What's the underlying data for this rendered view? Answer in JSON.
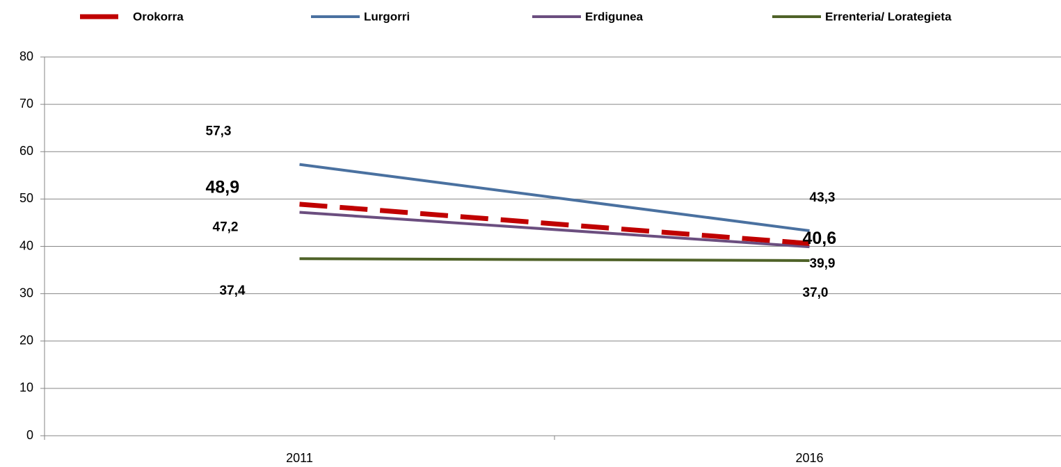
{
  "chart_data": {
    "type": "line",
    "categories": [
      "2011",
      "2016"
    ],
    "series": [
      {
        "name": "Orokorra",
        "color": "#c00000",
        "label_color": "#984806",
        "dashed": true,
        "values": [
          48.9,
          40.6
        ],
        "value_labels": [
          "48,9",
          "40,6"
        ]
      },
      {
        "name": "Lurgorri",
        "color": "#4a71a0",
        "label_color": "#3f6593",
        "dashed": false,
        "values": [
          57.3,
          43.3
        ],
        "value_labels": [
          "57,3",
          "43,3"
        ]
      },
      {
        "name": "Erdigunea",
        "color": "#6b4e7f",
        "label_color": "#7030a0",
        "dashed": false,
        "values": [
          47.2,
          39.9
        ],
        "value_labels": [
          "47,2",
          "39,9"
        ]
      },
      {
        "name": "Errenteria/ Lorategieta",
        "color": "#4f6228",
        "label_color": "#4f6228",
        "dashed": false,
        "values": [
          37.4,
          37.0
        ],
        "value_labels": [
          "37,4",
          "37,0"
        ]
      }
    ],
    "ylim": [
      0,
      80
    ],
    "yticks": [
      0,
      10,
      20,
      30,
      40,
      50,
      60,
      70,
      80
    ],
    "grid": true,
    "legend": "top"
  }
}
